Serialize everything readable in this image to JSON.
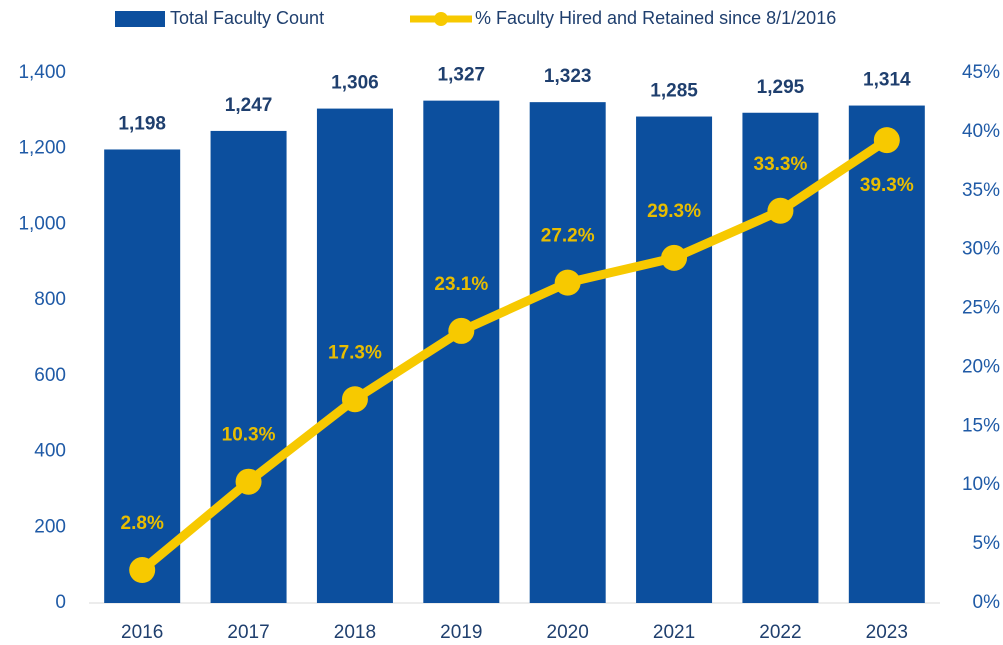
{
  "chart_data": {
    "type": "bar",
    "categories": [
      "2016",
      "2017",
      "2018",
      "2019",
      "2020",
      "2021",
      "2022",
      "2023"
    ],
    "series": [
      {
        "name": "Total Faculty Count",
        "type": "bar",
        "color": "#0c4f9e",
        "values": [
          1198,
          1247,
          1306,
          1327,
          1323,
          1285,
          1295,
          1314
        ],
        "value_labels": [
          "1,198",
          "1,247",
          "1,306",
          "1,327",
          "1,323",
          "1,285",
          "1,295",
          "1,314"
        ]
      },
      {
        "name": "% Faculty Hired and Retained since 8/1/2016",
        "type": "line",
        "axis": "y2",
        "color": "#f7c900",
        "values": [
          2.8,
          10.3,
          17.3,
          23.1,
          27.2,
          29.3,
          33.3,
          39.3
        ],
        "value_labels": [
          "2.8%",
          "10.3%",
          "17.3%",
          "23.1%",
          "27.2%",
          "29.3%",
          "33.3%",
          "39.3%"
        ]
      }
    ],
    "ylim": [
      0,
      1400
    ],
    "yticks": [
      {
        "value": 0,
        "label": "0"
      },
      {
        "value": 200,
        "label": "200"
      },
      {
        "value": 400,
        "label": "400"
      },
      {
        "value": 600,
        "label": "600"
      },
      {
        "value": 800,
        "label": "800"
      },
      {
        "value": 1000,
        "label": "1,000"
      },
      {
        "value": 1200,
        "label": "1,200"
      },
      {
        "value": 1400,
        "label": "1,400"
      }
    ],
    "y2lim": [
      0,
      45
    ],
    "y2ticks": [
      {
        "value": 0,
        "label": "0%"
      },
      {
        "value": 5,
        "label": "5%"
      },
      {
        "value": 10,
        "label": "10%"
      },
      {
        "value": 15,
        "label": "15%"
      },
      {
        "value": 20,
        "label": "20%"
      },
      {
        "value": 25,
        "label": "25%"
      },
      {
        "value": 30,
        "label": "30%"
      },
      {
        "value": 35,
        "label": "35%"
      },
      {
        "value": 40,
        "label": "40%"
      },
      {
        "value": 45,
        "label": "45%"
      }
    ],
    "grid": false,
    "legend": "top"
  }
}
